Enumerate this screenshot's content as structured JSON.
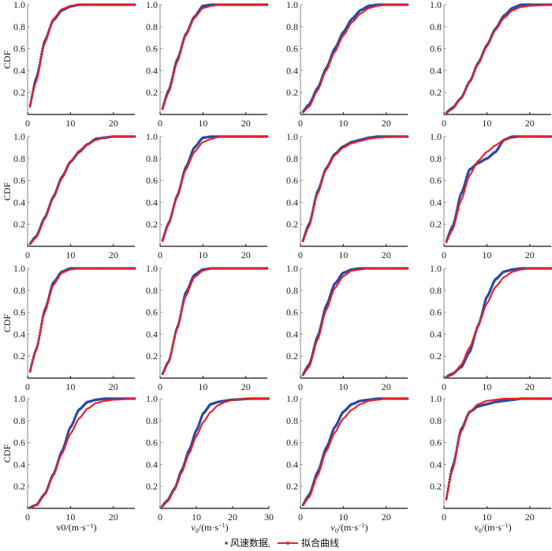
{
  "chart_data": {
    "type": "line",
    "layout": "4x4 grid",
    "ylabel": "CDF",
    "xlabel": "v0/(m·s⁻¹)",
    "xlabel_main": "v",
    "xlabel_sub": "0",
    "xlabel_unit": "/(m·s",
    "xlabel_sup": "−1",
    "xlabel_close": ")",
    "y_ticks": [
      "0.2",
      "0.4",
      "0.6",
      "0.8",
      "1.0"
    ],
    "legend": {
      "placement": "bottom-center",
      "data_label": "风速数据,",
      "fit_label": "拟合曲线"
    },
    "colors": {
      "data": "#2a4aa0",
      "fit": "#e8202a"
    },
    "panels": [
      {
        "xlim": [
          0,
          25
        ],
        "x_ticks": [
          "0",
          "10",
          "20"
        ],
        "x": [
          0,
          2,
          4,
          6,
          8,
          10,
          12,
          14,
          16,
          18,
          20,
          25
        ],
        "fit": [
          0,
          0.3,
          0.65,
          0.87,
          0.96,
          0.99,
          1,
          1,
          1,
          1,
          1,
          1
        ],
        "data": [
          0,
          0.33,
          0.67,
          0.86,
          0.95,
          0.985,
          1,
          1,
          1,
          1,
          1,
          1
        ]
      },
      {
        "xlim": [
          0,
          25
        ],
        "x_ticks": [
          "0",
          "10",
          "20"
        ],
        "x": [
          0,
          2,
          4,
          6,
          8,
          10,
          12,
          14,
          16,
          18,
          20,
          25
        ],
        "fit": [
          0,
          0.2,
          0.48,
          0.72,
          0.88,
          0.97,
          0.99,
          1,
          1,
          1,
          1,
          1
        ],
        "data": [
          0,
          0.22,
          0.5,
          0.73,
          0.89,
          0.99,
          1,
          1,
          1,
          1,
          1,
          1
        ]
      },
      {
        "xlim": [
          0,
          25
        ],
        "x_ticks": [
          "0",
          "10",
          "20"
        ],
        "x": [
          0,
          2,
          4,
          6,
          8,
          10,
          12,
          14,
          16,
          18,
          20,
          25
        ],
        "fit": [
          0,
          0.07,
          0.22,
          0.4,
          0.57,
          0.72,
          0.84,
          0.92,
          0.97,
          0.99,
          1,
          1
        ],
        "data": [
          0,
          0.09,
          0.24,
          0.42,
          0.6,
          0.75,
          0.87,
          0.95,
          0.99,
          1,
          1,
          1
        ]
      },
      {
        "xlim": [
          0,
          25
        ],
        "x_ticks": [
          "0",
          "10",
          "20"
        ],
        "x": [
          0,
          2,
          4,
          6,
          8,
          10,
          12,
          14,
          16,
          18,
          20,
          25
        ],
        "fit": [
          0,
          0.05,
          0.15,
          0.3,
          0.46,
          0.62,
          0.77,
          0.88,
          0.95,
          0.98,
          0.99,
          1
        ],
        "data": [
          0,
          0.06,
          0.15,
          0.3,
          0.47,
          0.63,
          0.78,
          0.9,
          0.97,
          1,
          1,
          1
        ]
      },
      {
        "xlim": [
          0,
          25
        ],
        "x_ticks": [
          "0",
          "10",
          "20"
        ],
        "x": [
          0,
          2,
          4,
          6,
          8,
          10,
          12,
          14,
          16,
          18,
          20,
          25
        ],
        "fit": [
          0,
          0.08,
          0.25,
          0.44,
          0.62,
          0.77,
          0.87,
          0.93,
          0.97,
          0.99,
          1,
          1
        ],
        "data": [
          0,
          0.09,
          0.26,
          0.45,
          0.63,
          0.77,
          0.86,
          0.93,
          0.98,
          0.99,
          1,
          1
        ]
      },
      {
        "xlim": [
          0,
          25
        ],
        "x_ticks": [
          "0",
          "10",
          "20"
        ],
        "x": [
          0,
          2,
          4,
          6,
          8,
          10,
          12,
          14,
          16,
          18,
          20,
          25
        ],
        "fit": [
          0,
          0.2,
          0.45,
          0.7,
          0.86,
          0.95,
          0.98,
          1,
          1,
          1,
          1,
          1
        ],
        "data": [
          0,
          0.21,
          0.46,
          0.72,
          0.9,
          0.99,
          1,
          1,
          1,
          1,
          1,
          1
        ]
      },
      {
        "xlim": [
          0,
          25
        ],
        "x_ticks": [
          "0",
          "10",
          "20"
        ],
        "x": [
          0,
          2,
          4,
          6,
          8,
          10,
          12,
          14,
          16,
          18,
          20,
          25
        ],
        "fit": [
          0,
          0.18,
          0.48,
          0.7,
          0.83,
          0.9,
          0.94,
          0.96,
          0.98,
          0.99,
          0.995,
          1
        ],
        "data": [
          0,
          0.2,
          0.5,
          0.71,
          0.84,
          0.91,
          0.95,
          0.97,
          0.99,
          1,
          1,
          1
        ]
      },
      {
        "xlim": [
          0,
          25
        ],
        "x_ticks": [
          "0",
          "10",
          "20"
        ],
        "x": [
          0,
          2,
          4,
          6,
          8,
          10,
          12,
          14,
          16,
          18,
          20,
          25
        ],
        "fit": [
          0,
          0.15,
          0.42,
          0.65,
          0.78,
          0.86,
          0.92,
          0.97,
          0.99,
          1,
          1,
          1
        ],
        "data": [
          0,
          0.18,
          0.48,
          0.7,
          0.76,
          0.8,
          0.86,
          0.97,
          1,
          1,
          1,
          1
        ]
      },
      {
        "xlim": [
          0,
          25
        ],
        "x_ticks": [
          "0",
          "10",
          "20"
        ],
        "x": [
          0,
          2,
          4,
          6,
          8,
          10,
          12,
          14,
          16,
          18,
          20,
          25
        ],
        "fit": [
          0,
          0.25,
          0.6,
          0.85,
          0.96,
          0.99,
          1,
          1,
          1,
          1,
          1,
          1
        ],
        "data": [
          0,
          0.26,
          0.62,
          0.87,
          0.97,
          1,
          1,
          1,
          1,
          1,
          1,
          1
        ]
      },
      {
        "xlim": [
          0,
          25
        ],
        "x_ticks": [
          "0",
          "10",
          "20"
        ],
        "x": [
          0,
          2,
          4,
          6,
          8,
          10,
          12,
          14,
          16,
          18,
          20,
          25
        ],
        "fit": [
          0,
          0.15,
          0.45,
          0.75,
          0.92,
          0.98,
          1,
          1,
          1,
          1,
          1,
          1
        ],
        "data": [
          0,
          0.15,
          0.46,
          0.78,
          0.94,
          0.99,
          1,
          1,
          1,
          1,
          1,
          1
        ]
      },
      {
        "xlim": [
          0,
          25
        ],
        "x_ticks": [
          "0",
          "10",
          "20"
        ],
        "x": [
          0,
          2,
          4,
          6,
          8,
          10,
          12,
          14,
          16,
          18,
          20,
          25
        ],
        "fit": [
          0,
          0.1,
          0.35,
          0.62,
          0.82,
          0.93,
          0.98,
          0.99,
          1,
          1,
          1,
          1
        ],
        "data": [
          0,
          0.12,
          0.38,
          0.66,
          0.86,
          0.96,
          0.99,
          1,
          1,
          1,
          1,
          1
        ]
      },
      {
        "xlim": [
          0,
          25
        ],
        "x_ticks": [
          "0",
          "10",
          "20"
        ],
        "x": [
          0,
          2,
          4,
          6,
          8,
          10,
          12,
          14,
          16,
          18,
          20,
          25
        ],
        "fit": [
          0,
          0.03,
          0.12,
          0.28,
          0.48,
          0.68,
          0.83,
          0.92,
          0.97,
          0.99,
          1,
          1
        ],
        "data": [
          0,
          0.04,
          0.1,
          0.24,
          0.48,
          0.74,
          0.9,
          0.97,
          0.99,
          1,
          1,
          1
        ]
      },
      {
        "xlim": [
          0,
          25
        ],
        "x_ticks": [
          "0",
          "10",
          "20"
        ],
        "x": [
          0,
          2,
          4,
          6,
          8,
          10,
          12,
          14,
          16,
          18,
          20,
          25
        ],
        "fit": [
          0,
          0.03,
          0.13,
          0.3,
          0.5,
          0.68,
          0.82,
          0.91,
          0.96,
          0.98,
          0.99,
          1
        ],
        "data": [
          0,
          0.03,
          0.13,
          0.31,
          0.52,
          0.74,
          0.9,
          0.97,
          0.99,
          1,
          1,
          1
        ]
      },
      {
        "xlim": [
          0,
          30
        ],
        "x_ticks": [
          "0",
          "10",
          "20",
          "30"
        ],
        "x": [
          0,
          2,
          4,
          6,
          8,
          10,
          12,
          14,
          16,
          18,
          20,
          25,
          30
        ],
        "fit": [
          0,
          0.06,
          0.17,
          0.33,
          0.5,
          0.66,
          0.79,
          0.88,
          0.94,
          0.97,
          0.99,
          1,
          1
        ],
        "data": [
          0,
          0.07,
          0.18,
          0.35,
          0.53,
          0.71,
          0.87,
          0.95,
          0.97,
          0.98,
          0.99,
          1,
          1
        ]
      },
      {
        "xlim": [
          0,
          25
        ],
        "x_ticks": [
          "0",
          "10",
          "20"
        ],
        "x": [
          0,
          2,
          4,
          6,
          8,
          10,
          12,
          14,
          16,
          18,
          20,
          25
        ],
        "fit": [
          0,
          0.1,
          0.3,
          0.52,
          0.69,
          0.82,
          0.9,
          0.95,
          0.98,
          0.99,
          1,
          1
        ],
        "data": [
          0,
          0.12,
          0.33,
          0.55,
          0.74,
          0.88,
          0.95,
          0.98,
          0.99,
          1,
          1,
          1
        ]
      },
      {
        "xlim": [
          0,
          25
        ],
        "x_ticks": [
          "0",
          "10",
          "20"
        ],
        "x": [
          0,
          2,
          4,
          6,
          8,
          10,
          12,
          14,
          16,
          18,
          20,
          25
        ],
        "fit": [
          0,
          0.35,
          0.7,
          0.88,
          0.95,
          0.98,
          0.99,
          1,
          1,
          1,
          1,
          1
        ],
        "data": [
          0,
          0.38,
          0.72,
          0.88,
          0.93,
          0.95,
          0.97,
          0.98,
          0.99,
          1,
          1,
          1
        ]
      }
    ]
  }
}
